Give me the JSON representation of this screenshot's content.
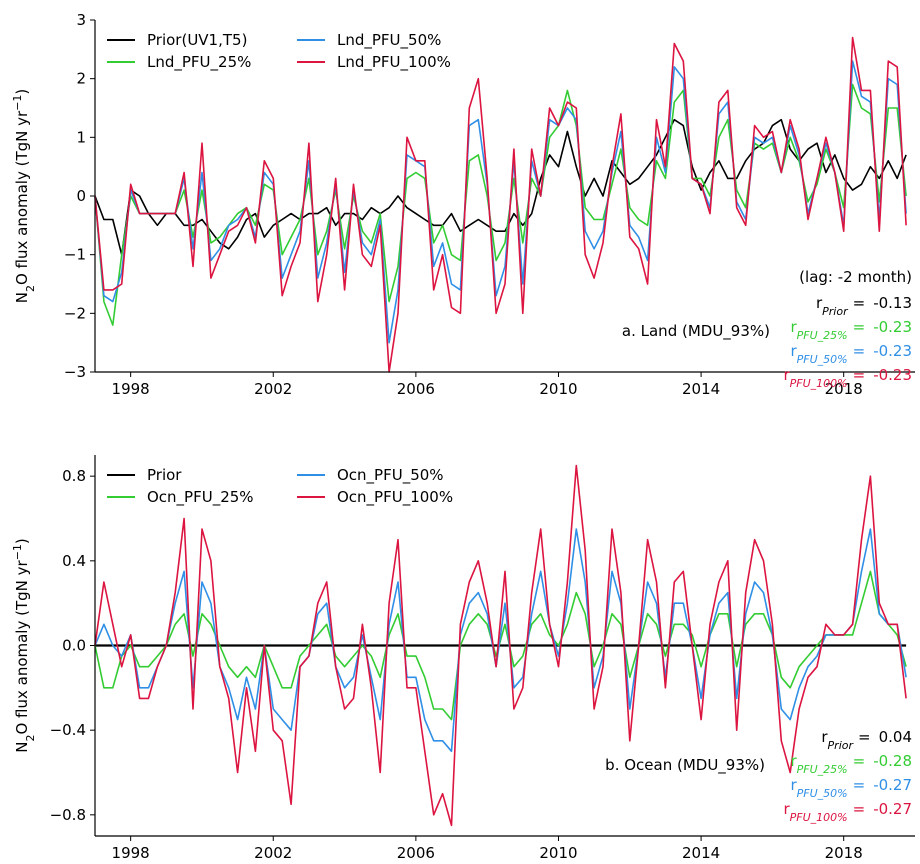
{
  "chart_data": [
    {
      "type": "line",
      "panel_title": "a. Land (MDU_93%)",
      "y_label": [
        {
          "text": "N"
        },
        {
          "text": "2",
          "script": "sub"
        },
        {
          "text": "O flux anomaly (TgN yr"
        },
        {
          "text": "−1",
          "script": "super"
        },
        {
          "text": ")"
        }
      ],
      "xlim": [
        1997,
        2020
      ],
      "xticks": [
        1998,
        2002,
        2006,
        2010,
        2014,
        2018
      ],
      "ylim": [
        -3,
        3
      ],
      "yticks": [
        3,
        2,
        1,
        0,
        {
          "value": -1,
          "label": "−1"
        },
        {
          "value": -2,
          "label": "−2"
        },
        {
          "value": -3,
          "label": "−3"
        }
      ],
      "legend": "upper left",
      "x": [
        1997,
        1997.25,
        1997.5,
        1997.75,
        1998,
        1998.25,
        1998.5,
        1998.75,
        1999,
        1999.25,
        1999.5,
        1999.75,
        2000,
        2000.25,
        2000.5,
        2000.75,
        2001,
        2001.25,
        2001.5,
        2001.75,
        2002,
        2002.25,
        2002.5,
        2002.75,
        2003,
        2003.25,
        2003.5,
        2003.75,
        2004,
        2004.25,
        2004.5,
        2004.75,
        2005,
        2005.25,
        2005.5,
        2005.75,
        2006,
        2006.25,
        2006.5,
        2006.75,
        2007,
        2007.25,
        2007.5,
        2007.75,
        2008,
        2008.25,
        2008.5,
        2008.75,
        2009,
        2009.25,
        2009.5,
        2009.75,
        2010,
        2010.25,
        2010.5,
        2010.75,
        2011,
        2011.25,
        2011.5,
        2011.75,
        2012,
        2012.25,
        2012.5,
        2012.75,
        2013,
        2013.25,
        2013.5,
        2013.75,
        2014,
        2014.25,
        2014.5,
        2014.75,
        2015,
        2015.25,
        2015.5,
        2015.75,
        2016,
        2016.25,
        2016.5,
        2016.75,
        2017,
        2017.25,
        2017.5,
        2017.75,
        2018,
        2018.25,
        2018.5,
        2018.75,
        2019,
        2019.25,
        2019.5,
        2019.75
      ],
      "series": [
        {
          "name": "Prior(UV1,T5)",
          "color": "#000000",
          "values": [
            0,
            -0.4,
            -0.4,
            -1.0,
            0.1,
            0.0,
            -0.3,
            -0.5,
            -0.3,
            -0.3,
            -0.5,
            -0.5,
            -0.4,
            -0.6,
            -0.8,
            -0.9,
            -0.7,
            -0.4,
            -0.3,
            -0.7,
            -0.5,
            -0.4,
            -0.3,
            -0.4,
            -0.3,
            -0.3,
            -0.2,
            -0.5,
            -0.3,
            -0.3,
            -0.4,
            -0.2,
            -0.3,
            -0.2,
            0.0,
            -0.2,
            -0.3,
            -0.4,
            -0.5,
            -0.5,
            -0.3,
            -0.6,
            -0.5,
            -0.4,
            -0.5,
            -0.6,
            -0.6,
            -0.3,
            -0.5,
            -0.3,
            0.3,
            0.7,
            0.5,
            1.1,
            0.5,
            0.0,
            0.3,
            0.0,
            0.6,
            0.4,
            0.2,
            0.3,
            0.5,
            0.7,
            1.0,
            1.3,
            1.2,
            0.5,
            0.1,
            0.4,
            0.6,
            0.3,
            0.3,
            0.6,
            0.8,
            0.9,
            1.2,
            1.3,
            0.8,
            0.6,
            0.8,
            0.9,
            0.4,
            0.7,
            0.3,
            0.1,
            0.2,
            0.5,
            0.3,
            0.6,
            0.3,
            0.7
          ]
        },
        {
          "name": "Lnd_PFU_25%",
          "color": "#33cc33",
          "values": [
            0,
            -1.8,
            -2.2,
            -1.0,
            0.0,
            -0.3,
            -0.3,
            -0.3,
            -0.3,
            -0.3,
            0.1,
            -0.7,
            0.1,
            -0.8,
            -0.7,
            -0.5,
            -0.3,
            -0.2,
            -0.5,
            0.2,
            0.1,
            -1.0,
            -0.7,
            -0.4,
            0.3,
            -1.0,
            -0.6,
            0.1,
            -0.9,
            0.0,
            -0.6,
            -0.8,
            -0.3,
            -1.8,
            -1.2,
            0.3,
            0.4,
            0.3,
            -0.8,
            -0.5,
            -1.0,
            -1.1,
            0.6,
            0.7,
            0.0,
            -1.1,
            -0.8,
            0.3,
            -0.8,
            0.3,
            0.0,
            1.0,
            1.2,
            1.8,
            1.2,
            -0.2,
            -0.4,
            -0.4,
            0.2,
            0.8,
            -0.2,
            -0.4,
            -0.5,
            0.6,
            0.3,
            1.6,
            1.8,
            0.3,
            0.3,
            0.0,
            1.0,
            1.3,
            0.1,
            -0.2,
            0.9,
            0.8,
            0.9,
            0.4,
            1.0,
            0.6,
            -0.1,
            0.2,
            0.8,
            0.4,
            -0.2,
            1.9,
            1.5,
            1.4,
            -0.1,
            1.5,
            1.5,
            0.0
          ]
        },
        {
          "name": "Lnd_PFU_50%",
          "color": "#2f8fe6",
          "values": [
            0,
            -1.7,
            -1.8,
            -1.3,
            0.1,
            -0.3,
            -0.3,
            -0.3,
            -0.3,
            -0.3,
            0.3,
            -0.9,
            0.4,
            -1.1,
            -0.9,
            -0.5,
            -0.4,
            -0.2,
            -0.7,
            0.4,
            0.2,
            -1.4,
            -1.0,
            -0.6,
            0.6,
            -1.4,
            -0.8,
            0.2,
            -1.3,
            0.1,
            -0.8,
            -1.0,
            -0.4,
            -2.5,
            -1.6,
            0.7,
            0.6,
            0.5,
            -1.2,
            -0.8,
            -1.5,
            -1.6,
            1.2,
            1.3,
            0.2,
            -1.7,
            -1.2,
            0.6,
            -1.5,
            0.6,
            0.0,
            1.3,
            1.2,
            1.5,
            1.3,
            -0.6,
            -0.9,
            -0.6,
            0.4,
            1.1,
            -0.5,
            -0.7,
            -1.1,
            1.0,
            0.4,
            2.2,
            2.0,
            0.3,
            0.2,
            -0.2,
            1.4,
            1.6,
            -0.1,
            -0.4,
            1.0,
            0.9,
            1.0,
            0.4,
            1.2,
            0.7,
            -0.3,
            0.3,
            0.9,
            0.4,
            -0.5,
            2.3,
            1.7,
            1.6,
            -0.4,
            2.0,
            1.9,
            -0.3
          ]
        },
        {
          "name": "Lnd_PFU_100%",
          "color": "#dc1440",
          "values": [
            0,
            -1.6,
            -1.6,
            -1.5,
            0.2,
            -0.3,
            -0.3,
            -0.3,
            -0.3,
            -0.3,
            0.4,
            -1.2,
            0.9,
            -1.4,
            -1.0,
            -0.6,
            -0.5,
            -0.2,
            -0.8,
            0.6,
            0.3,
            -1.7,
            -1.2,
            -0.8,
            0.9,
            -1.8,
            -1.0,
            0.3,
            -1.6,
            0.2,
            -1.0,
            -1.2,
            -0.5,
            -3.0,
            -2.0,
            1.0,
            0.6,
            0.6,
            -1.6,
            -1.0,
            -1.9,
            -2.0,
            1.5,
            2.0,
            0.3,
            -2.0,
            -1.5,
            0.8,
            -2.0,
            0.8,
            0.0,
            1.5,
            1.2,
            1.6,
            1.5,
            -1.0,
            -1.4,
            -0.8,
            0.5,
            1.4,
            -0.7,
            -0.9,
            -1.5,
            1.3,
            0.5,
            2.6,
            2.3,
            0.3,
            0.2,
            -0.3,
            1.6,
            1.8,
            -0.2,
            -0.5,
            1.2,
            1.0,
            1.1,
            0.4,
            1.3,
            0.8,
            -0.4,
            0.3,
            1.0,
            0.4,
            -0.6,
            2.7,
            1.8,
            1.8,
            -0.6,
            2.3,
            2.2,
            -0.5
          ]
        }
      ],
      "annotation": "(lag: -2 month)",
      "stats": [
        {
          "symbol": "r",
          "subscript": "Prior",
          "relation": "=",
          "value": -0.13,
          "color": "#000000"
        },
        {
          "symbol": "r",
          "subscript": "PFU_25%",
          "relation": "=",
          "value": -0.23,
          "color": "#33cc33"
        },
        {
          "symbol": "r",
          "subscript": "PFU_50%",
          "relation": "=",
          "value": -0.23,
          "color": "#2f8fe6"
        },
        {
          "symbol": "r",
          "subscript": "PFU_100%",
          "relation": "=",
          "value": -0.23,
          "color": "#dc1440"
        }
      ]
    },
    {
      "type": "line",
      "panel_title": "b. Ocean (MDU_93%)",
      "y_label": [
        {
          "text": "N"
        },
        {
          "text": "2",
          "script": "sub"
        },
        {
          "text": "O flux anomaly (TgN yr"
        },
        {
          "text": "−1",
          "script": "super"
        },
        {
          "text": ")"
        }
      ],
      "xlim": [
        1997,
        2020
      ],
      "xticks": [
        1998,
        2002,
        2006,
        2010,
        2014,
        2018
      ],
      "ylim": [
        -0.9,
        0.9
      ],
      "yticks": [
        0.8,
        0.4,
        {
          "value": 0,
          "label": "0.0"
        },
        {
          "value": -0.4,
          "label": "−0.4"
        },
        {
          "value": -0.8,
          "label": "−0.8"
        }
      ],
      "legend": "upper left",
      "x": [
        1997,
        1997.25,
        1997.5,
        1997.75,
        1998,
        1998.25,
        1998.5,
        1998.75,
        1999,
        1999.25,
        1999.5,
        1999.75,
        2000,
        2000.25,
        2000.5,
        2000.75,
        2001,
        2001.25,
        2001.5,
        2001.75,
        2002,
        2002.25,
        2002.5,
        2002.75,
        2003,
        2003.25,
        2003.5,
        2003.75,
        2004,
        2004.25,
        2004.5,
        2004.75,
        2005,
        2005.25,
        2005.5,
        2005.75,
        2006,
        2006.25,
        2006.5,
        2006.75,
        2007,
        2007.25,
        2007.5,
        2007.75,
        2008,
        2008.25,
        2008.5,
        2008.75,
        2009,
        2009.25,
        2009.5,
        2009.75,
        2010,
        2010.25,
        2010.5,
        2010.75,
        2011,
        2011.25,
        2011.5,
        2011.75,
        2012,
        2012.25,
        2012.5,
        2012.75,
        2013,
        2013.25,
        2013.5,
        2013.75,
        2014,
        2014.25,
        2014.5,
        2014.75,
        2015,
        2015.25,
        2015.5,
        2015.75,
        2016,
        2016.25,
        2016.5,
        2016.75,
        2017,
        2017.25,
        2017.5,
        2017.75,
        2018,
        2018.25,
        2018.5,
        2018.75,
        2019,
        2019.25,
        2019.5,
        2019.75
      ],
      "series": [
        {
          "name": "Prior",
          "color": "#000000",
          "values": [
            0,
            0,
            0,
            0,
            0,
            0,
            0,
            0,
            0,
            0,
            0,
            0,
            0,
            0,
            0,
            0,
            0,
            0,
            0,
            0,
            0,
            0,
            0,
            0,
            0,
            0,
            0,
            0,
            0,
            0,
            0,
            0,
            0,
            0,
            0,
            0,
            0,
            0,
            0,
            0,
            0,
            0,
            0,
            0,
            0,
            0,
            0,
            0,
            0,
            0,
            0,
            0,
            0,
            0,
            0,
            0,
            0,
            0,
            0,
            0,
            0,
            0,
            0,
            0,
            0,
            0,
            0,
            0,
            0,
            0,
            0,
            0,
            0,
            0,
            0,
            0,
            0,
            0,
            0,
            0,
            0,
            0,
            0,
            0,
            0,
            0,
            0,
            0,
            0,
            0,
            0,
            0
          ]
        },
        {
          "name": "Ocn_PFU_25%",
          "color": "#33cc33",
          "values": [
            0,
            -0.2,
            -0.2,
            -0.05,
            0.0,
            -0.1,
            -0.1,
            -0.05,
            0.0,
            0.1,
            0.15,
            -0.05,
            0.15,
            0.1,
            0.0,
            -0.1,
            -0.15,
            -0.1,
            -0.15,
            0.0,
            -0.1,
            -0.2,
            -0.2,
            -0.05,
            0.0,
            0.05,
            0.1,
            -0.05,
            -0.1,
            -0.05,
            0.0,
            -0.05,
            -0.15,
            0.05,
            0.15,
            -0.05,
            -0.05,
            -0.15,
            -0.3,
            -0.3,
            -0.35,
            0.0,
            0.1,
            0.15,
            0.1,
            -0.05,
            0.1,
            -0.1,
            -0.05,
            0.1,
            0.15,
            0.05,
            0.0,
            0.1,
            0.25,
            0.15,
            -0.1,
            0.0,
            0.15,
            0.1,
            -0.15,
            0.0,
            0.15,
            0.1,
            -0.05,
            0.1,
            0.1,
            0.05,
            -0.1,
            0.05,
            0.15,
            0.15,
            -0.1,
            0.1,
            0.15,
            0.15,
            0.05,
            -0.15,
            -0.2,
            -0.1,
            -0.05,
            0.0,
            0.05,
            0.05,
            0.05,
            0.05,
            0.2,
            0.35,
            0.15,
            0.1,
            0.05,
            -0.1
          ]
        },
        {
          "name": "Ocn_PFU_50%",
          "color": "#2f8fe6",
          "values": [
            0,
            0.1,
            0.0,
            -0.05,
            0.05,
            -0.2,
            -0.2,
            -0.1,
            0.0,
            0.2,
            0.35,
            -0.2,
            0.3,
            0.2,
            -0.1,
            -0.2,
            -0.35,
            -0.15,
            -0.3,
            0.0,
            -0.3,
            -0.35,
            -0.4,
            -0.1,
            -0.05,
            0.15,
            0.2,
            -0.1,
            -0.2,
            -0.15,
            0.05,
            -0.15,
            -0.35,
            0.1,
            0.3,
            -0.15,
            -0.15,
            -0.35,
            -0.45,
            -0.45,
            -0.5,
            0.05,
            0.2,
            0.25,
            0.15,
            -0.1,
            0.2,
            -0.2,
            -0.15,
            0.15,
            0.35,
            0.1,
            -0.05,
            0.2,
            0.55,
            0.3,
            -0.2,
            -0.05,
            0.35,
            0.2,
            -0.3,
            0.0,
            0.3,
            0.2,
            -0.15,
            0.2,
            0.2,
            0.0,
            -0.25,
            0.05,
            0.2,
            0.25,
            -0.25,
            0.15,
            0.3,
            0.25,
            0.05,
            -0.3,
            -0.35,
            -0.2,
            -0.1,
            -0.05,
            0.05,
            0.05,
            0.05,
            0.1,
            0.35,
            0.55,
            0.15,
            0.1,
            0.1,
            -0.15
          ]
        },
        {
          "name": "Ocn_PFU_100%",
          "color": "#dc1440",
          "values": [
            0,
            0.3,
            0.1,
            -0.1,
            0.05,
            -0.25,
            -0.25,
            -0.1,
            0.0,
            0.25,
            0.6,
            -0.3,
            0.55,
            0.4,
            -0.1,
            -0.25,
            -0.6,
            -0.2,
            -0.5,
            0.0,
            -0.4,
            -0.45,
            -0.75,
            -0.1,
            -0.05,
            0.2,
            0.3,
            -0.1,
            -0.3,
            -0.25,
            0.1,
            -0.2,
            -0.6,
            0.2,
            0.5,
            -0.2,
            -0.2,
            -0.5,
            -0.8,
            -0.7,
            -0.85,
            0.1,
            0.3,
            0.4,
            0.2,
            -0.1,
            0.35,
            -0.3,
            -0.2,
            0.25,
            0.55,
            0.1,
            -0.1,
            0.3,
            0.85,
            0.45,
            -0.3,
            -0.1,
            0.55,
            0.25,
            -0.45,
            0.0,
            0.5,
            0.3,
            -0.2,
            0.3,
            0.35,
            0.0,
            -0.35,
            0.1,
            0.3,
            0.4,
            -0.4,
            0.25,
            0.5,
            0.4,
            0.1,
            -0.45,
            -0.6,
            -0.3,
            -0.15,
            -0.1,
            0.1,
            0.05,
            0.05,
            0.1,
            0.5,
            0.8,
            0.2,
            0.1,
            0.1,
            -0.25
          ]
        }
      ],
      "stats": [
        {
          "symbol": "r",
          "subscript": "Prior",
          "relation": "=",
          "value": 0.04,
          "color": "#000000"
        },
        {
          "symbol": "r",
          "subscript": "PFU_25%",
          "relation": "=",
          "value": -0.28,
          "color": "#33cc33"
        },
        {
          "symbol": "r",
          "subscript": "PFU_50%",
          "relation": "=",
          "value": -0.27,
          "color": "#2f8fe6"
        },
        {
          "symbol": "r",
          "subscript": "PFU_100%",
          "relation": "=",
          "value": -0.27,
          "color": "#dc1440"
        }
      ]
    }
  ]
}
